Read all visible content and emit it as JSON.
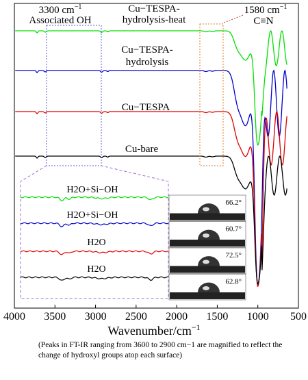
{
  "chart_data": {
    "type": "line",
    "xlabel": "Wavenumber/cm",
    "xlabel_sup": "−1",
    "xlim": [
      4000,
      500
    ],
    "x_ticks": [
      "4000",
      "3500",
      "3000",
      "2500",
      "2000",
      "1500",
      "1000",
      "500"
    ],
    "grid": false,
    "series": [
      {
        "name": "Cu−TESPA-hydrolysis-heat",
        "color": "#00e000"
      },
      {
        "name": "Cu−TESPA-hydrolysis",
        "color": "#0000cc"
      },
      {
        "name": "Cu−TESPA",
        "color": "#e00000"
      },
      {
        "name": "Cu-bare",
        "color": "#000000"
      }
    ],
    "label_lines": {
      "heat": [
        "Cu−TESPA-",
        "hydrolysis-heat"
      ],
      "hydrolysis": [
        "Cu−TESPA-",
        "hydrolysis"
      ],
      "tespa": "Cu−TESPA",
      "bare": "Cu-bare"
    },
    "annotations": {
      "oh_band": "3300 cm",
      "oh_band_sup": "−1",
      "oh_label": "Associated OH",
      "cn_band": "1580 cm",
      "cn_band_sup": "−1",
      "cn_label": "C≡N"
    },
    "inset_labels": [
      "H2O+Si−OH",
      "H2O+Si−OH",
      "H2O",
      "H2O"
    ],
    "contact_angles": [
      "66.2°",
      "60.7°",
      "72.5°",
      "62.8°"
    ]
  },
  "caption": "(Peaks in FT-IR ranging from 3600 to 2900 cm−1 are magnified to reflect the change of hydroxyl groups atop each surface)"
}
